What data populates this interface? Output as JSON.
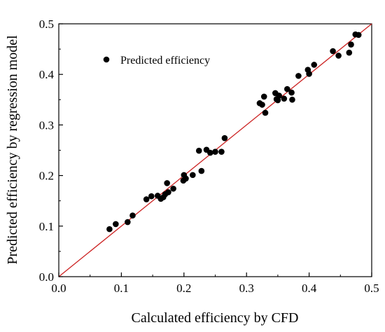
{
  "chart_data": {
    "type": "scatter",
    "title": "",
    "xlabel": "Calculated efficiency by CFD",
    "ylabel": "Predicted efficiency by regression model",
    "xlim": [
      0.0,
      0.5
    ],
    "ylim": [
      0.0,
      0.5
    ],
    "xticks": [
      0.0,
      0.1,
      0.2,
      0.3,
      0.4,
      0.5
    ],
    "yticks": [
      0.0,
      0.1,
      0.2,
      0.3,
      0.4,
      0.5
    ],
    "xtick_labels": [
      "0.0",
      "0.1",
      "0.2",
      "0.3",
      "0.4",
      "0.5"
    ],
    "ytick_labels": [
      "0.0",
      "0.1",
      "0.2",
      "0.3",
      "0.4",
      "0.5"
    ],
    "grid": false,
    "legend": {
      "placement": "top-left",
      "entries": [
        "Predicted efficiency"
      ]
    },
    "reference_line": {
      "from": [
        0.0,
        0.0
      ],
      "to": [
        0.5,
        0.5
      ],
      "color": "#cc2222"
    },
    "marker_color": "#000000",
    "series": [
      {
        "name": "Predicted efficiency",
        "points": [
          [
            0.081,
            0.094
          ],
          [
            0.091,
            0.104
          ],
          [
            0.11,
            0.108
          ],
          [
            0.118,
            0.121
          ],
          [
            0.14,
            0.153
          ],
          [
            0.148,
            0.159
          ],
          [
            0.158,
            0.16
          ],
          [
            0.163,
            0.154
          ],
          [
            0.167,
            0.157
          ],
          [
            0.17,
            0.163
          ],
          [
            0.173,
            0.185
          ],
          [
            0.175,
            0.167
          ],
          [
            0.183,
            0.174
          ],
          [
            0.199,
            0.19
          ],
          [
            0.2,
            0.201
          ],
          [
            0.203,
            0.194
          ],
          [
            0.214,
            0.201
          ],
          [
            0.224,
            0.249
          ],
          [
            0.228,
            0.209
          ],
          [
            0.236,
            0.251
          ],
          [
            0.242,
            0.245
          ],
          [
            0.25,
            0.247
          ],
          [
            0.26,
            0.247
          ],
          [
            0.265,
            0.274
          ],
          [
            0.321,
            0.343
          ],
          [
            0.325,
            0.34
          ],
          [
            0.328,
            0.356
          ],
          [
            0.33,
            0.324
          ],
          [
            0.346,
            0.363
          ],
          [
            0.348,
            0.351
          ],
          [
            0.35,
            0.349
          ],
          [
            0.352,
            0.358
          ],
          [
            0.36,
            0.352
          ],
          [
            0.365,
            0.371
          ],
          [
            0.372,
            0.364
          ],
          [
            0.373,
            0.35
          ],
          [
            0.383,
            0.397
          ],
          [
            0.398,
            0.409
          ],
          [
            0.4,
            0.401
          ],
          [
            0.408,
            0.419
          ],
          [
            0.438,
            0.446
          ],
          [
            0.447,
            0.437
          ],
          [
            0.464,
            0.443
          ],
          [
            0.467,
            0.459
          ],
          [
            0.474,
            0.479
          ],
          [
            0.479,
            0.478
          ]
        ]
      }
    ]
  }
}
